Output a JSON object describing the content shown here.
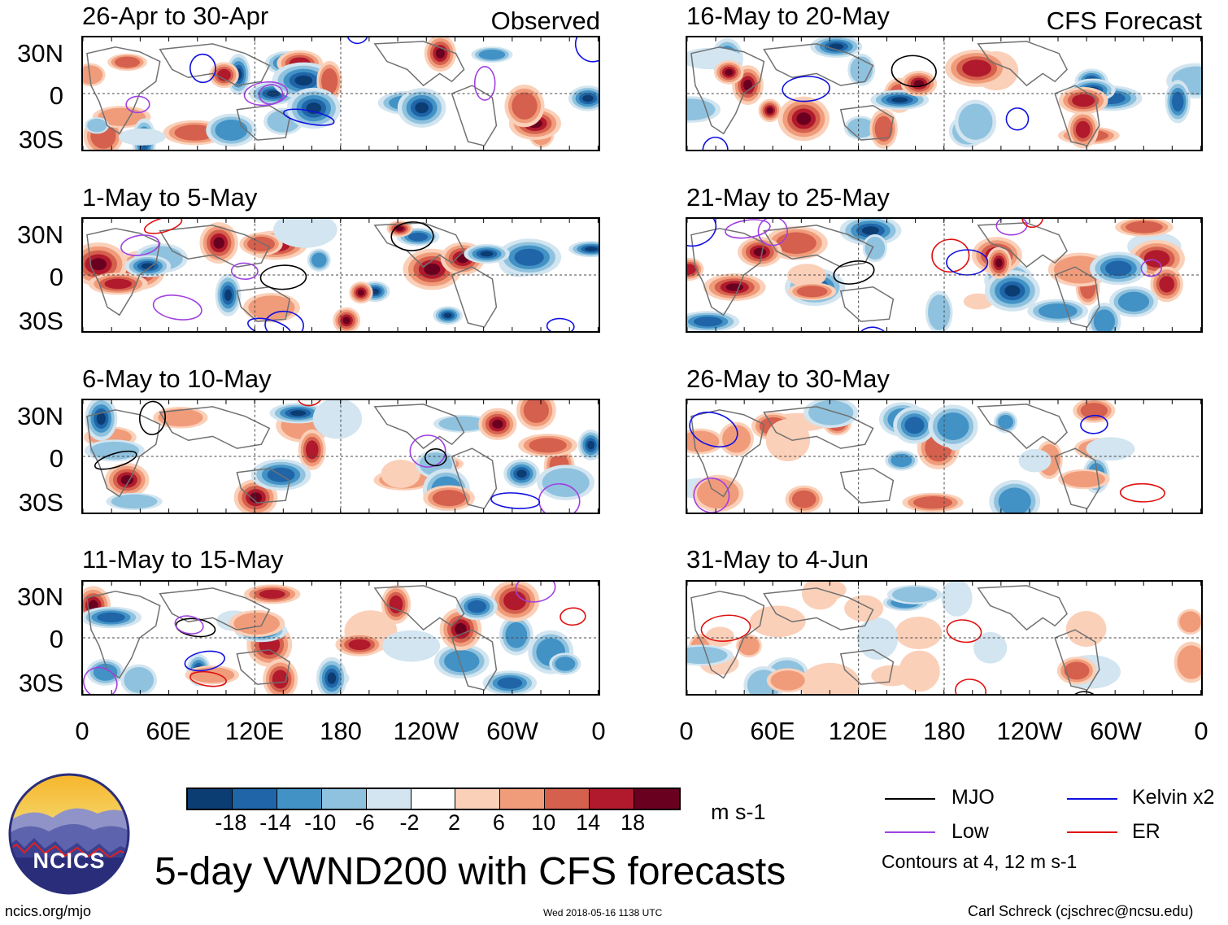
{
  "title": "5-day VWND200 with CFS forecasts",
  "observed_label": "Observed",
  "forecast_label": "CFS Forecast",
  "panels_observed": [
    {
      "period": "26-Apr to 30-Apr"
    },
    {
      "period": "1-May to 5-May"
    },
    {
      "period": "6-May to 10-May"
    },
    {
      "period": "11-May to 15-May"
    }
  ],
  "panels_forecast": [
    {
      "period": "16-May to 20-May"
    },
    {
      "period": "21-May to 25-May"
    },
    {
      "period": "26-May to 30-May"
    },
    {
      "period": "31-May to 4-Jun"
    }
  ],
  "lat_labels": [
    "30N",
    "0",
    "30S"
  ],
  "lon_labels": [
    "0",
    "60E",
    "120E",
    "180",
    "120W",
    "60W",
    "0"
  ],
  "colorbar": {
    "unit": "m s-1",
    "ticks": [
      "-18",
      "-14",
      "-10",
      "-6",
      "-2",
      "2",
      "6",
      "10",
      "14",
      "18"
    ],
    "colors": [
      "#0b3d73",
      "#1f65a8",
      "#4292c6",
      "#8fc2de",
      "#d2e5f0",
      "#ffffff",
      "#fbd0b9",
      "#f09c7b",
      "#d5604d",
      "#b01a2c",
      "#6a0020"
    ]
  },
  "legend": {
    "mjo": "MJO",
    "kelvin": "Kelvin x2",
    "low": "Low",
    "er": "ER",
    "note": "Contours at 4, 12 m s-1",
    "colors": {
      "mjo": "#000000",
      "kelvin": "#1010e0",
      "low": "#a040e0",
      "er": "#e01010"
    }
  },
  "logo_text": "NCICS",
  "footer": {
    "url": "ncics.org/mjo",
    "timestamp": "Wed 2018-05-16 1138 UTC",
    "credit": "Carl Schreck (cjschrec@ncsu.edu)"
  }
}
